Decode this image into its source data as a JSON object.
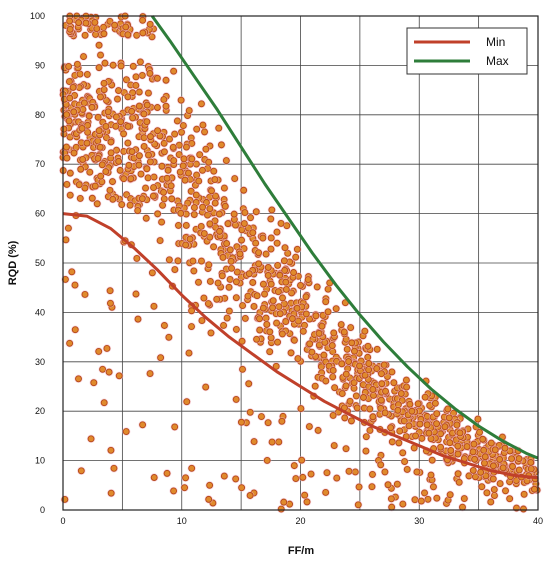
{
  "chart_data": {
    "type": "scatter",
    "xlabel": "FF/m",
    "ylabel": "RQD (%)",
    "xlim": [
      0,
      40
    ],
    "ylim": [
      0,
      100
    ],
    "xticks": [
      0,
      10,
      20,
      30,
      40
    ],
    "yticks": [
      0,
      10,
      20,
      30,
      40,
      50,
      60,
      70,
      80,
      90,
      100
    ],
    "grid": true,
    "legend_position": "top-right",
    "point_style": {
      "fill": "#e08a2c",
      "edge": "#b5481a",
      "halo": "#f4b8c8"
    },
    "scatter": {
      "description_points": "dense band between Min and Max curves plus outliers",
      "point_count": 1400,
      "seed": 7
    },
    "series": [
      {
        "name": "Min",
        "color": "#c0402a",
        "x": [
          0,
          2,
          4,
          6,
          8,
          10,
          12,
          14,
          16,
          18,
          20,
          22,
          24,
          26,
          28,
          30,
          32,
          34,
          36,
          38,
          40
        ],
        "y": [
          60,
          59.5,
          57,
          53,
          48.5,
          43.5,
          39,
          35,
          31.5,
          28,
          25,
          22,
          19.5,
          17,
          15,
          13,
          11,
          9.5,
          8,
          7,
          6.5
        ]
      },
      {
        "name": "Max",
        "color": "#2e7d3a",
        "x": [
          7.5,
          9,
          11,
          13,
          15,
          17,
          19,
          21,
          23,
          25,
          27,
          29,
          31,
          33,
          35,
          37,
          39,
          40
        ],
        "y": [
          100,
          95,
          88,
          81,
          73.5,
          66,
          59,
          52,
          45.5,
          39.5,
          34,
          29,
          24.5,
          20.5,
          17,
          14,
          11.5,
          10.5
        ]
      }
    ]
  }
}
